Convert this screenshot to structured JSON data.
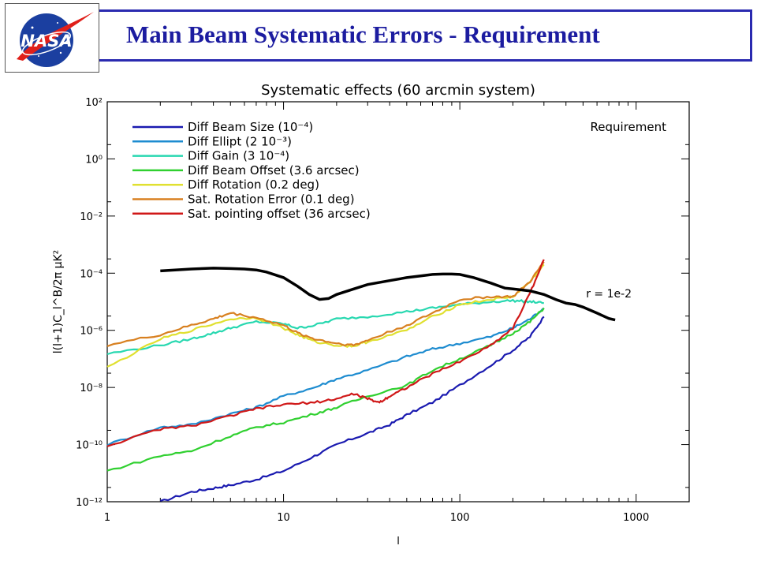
{
  "slide": {
    "title": "Main Beam Systematic Errors - Requirement",
    "logo_text": "NASA",
    "colors": {
      "title": "#1c1ca0",
      "border": "#2a2ab0",
      "logo_blue": "#1b3fa0",
      "logo_red": "#e0201a"
    }
  },
  "chart_data": {
    "type": "line",
    "title": "Systematic effects (60 arcmin system)",
    "xlabel": "l",
    "ylabel": "l(l+1)C_l^B/2π μK²",
    "xscale": "log",
    "yscale": "log",
    "xlim": [
      1,
      2000
    ],
    "ylim": [
      1e-12,
      100
    ],
    "x_ticks": [
      {
        "value": 1,
        "label": "1"
      },
      {
        "value": 10,
        "label": "10"
      },
      {
        "value": 100,
        "label": "100"
      },
      {
        "value": 1000,
        "label": "1000"
      }
    ],
    "y_ticks": [
      {
        "value": 1e-12,
        "label": "10⁻¹²"
      },
      {
        "value": 1e-10,
        "label": "10⁻¹⁰"
      },
      {
        "value": 1e-08,
        "label": "10⁻⁸"
      },
      {
        "value": 1e-06,
        "label": "10⁻⁶"
      },
      {
        "value": 0.0001,
        "label": "10⁻⁴"
      },
      {
        "value": 0.01,
        "label": "10⁻²"
      },
      {
        "value": 1,
        "label": "10⁰"
      },
      {
        "value": 100,
        "label": "10²"
      }
    ],
    "requirement_label": "Requirement",
    "requirement_curve": {
      "name": "r = 1e-2",
      "color": "#000000",
      "points": [
        [
          2,
          0.00012
        ],
        [
          3,
          0.00014
        ],
        [
          4,
          0.00015
        ],
        [
          5,
          0.000145
        ],
        [
          6,
          0.00014
        ],
        [
          7,
          0.00013
        ],
        [
          8,
          0.00011
        ],
        [
          10,
          7e-05
        ],
        [
          12,
          3.5e-05
        ],
        [
          14,
          1.8e-05
        ],
        [
          16,
          1.2e-05
        ],
        [
          18,
          1.3e-05
        ],
        [
          20,
          1.8e-05
        ],
        [
          25,
          2.8e-05
        ],
        [
          30,
          4e-05
        ],
        [
          40,
          5.5e-05
        ],
        [
          50,
          7e-05
        ],
        [
          60,
          8e-05
        ],
        [
          70,
          9e-05
        ],
        [
          80,
          9.3e-05
        ],
        [
          90,
          9.3e-05
        ],
        [
          100,
          9e-05
        ],
        [
          120,
          7e-05
        ],
        [
          150,
          4.5e-05
        ],
        [
          180,
          3e-05
        ],
        [
          200,
          2.8e-05
        ],
        [
          250,
          2.4e-05
        ],
        [
          300,
          1.8e-05
        ],
        [
          350,
          1.2e-05
        ],
        [
          400,
          9e-06
        ],
        [
          450,
          8e-06
        ],
        [
          500,
          6.5e-06
        ],
        [
          600,
          4e-06
        ],
        [
          700,
          2.6e-06
        ],
        [
          760,
          2.3e-06
        ]
      ]
    },
    "series": [
      {
        "name": "Diff Beam Size (10⁻⁴)",
        "color": "#1a1ab0",
        "points": [
          [
            2,
            1e-12
          ],
          [
            3,
            2.2e-12
          ],
          [
            4,
            3e-12
          ],
          [
            5,
            3.8e-12
          ],
          [
            7,
            6e-12
          ],
          [
            10,
            1.2e-11
          ],
          [
            15,
            4e-11
          ],
          [
            20,
            1e-10
          ],
          [
            30,
            2.5e-10
          ],
          [
            40,
            5e-10
          ],
          [
            50,
            1.1e-09
          ],
          [
            70,
            3e-09
          ],
          [
            100,
            1.2e-08
          ],
          [
            150,
            6e-08
          ],
          [
            200,
            2e-07
          ],
          [
            250,
            6e-07
          ],
          [
            300,
            3e-06
          ]
        ]
      },
      {
        "name": "Diff Ellipt (2 10⁻³)",
        "color": "#1e8cd0",
        "points": [
          [
            1,
            1e-10
          ],
          [
            2,
            4e-10
          ],
          [
            3,
            5e-10
          ],
          [
            5,
            1.2e-09
          ],
          [
            7,
            2e-09
          ],
          [
            10,
            5e-09
          ],
          [
            15,
            1e-08
          ],
          [
            20,
            2e-08
          ],
          [
            30,
            4e-08
          ],
          [
            50,
            1.2e-07
          ],
          [
            70,
            2.2e-07
          ],
          [
            100,
            3.5e-07
          ],
          [
            150,
            6e-07
          ],
          [
            200,
            1.2e-06
          ],
          [
            250,
            2.5e-06
          ],
          [
            300,
            6e-06
          ]
        ]
      },
      {
        "name": "Diff Gain (3 10⁻⁴)",
        "color": "#28d8b0",
        "points": [
          [
            1,
            1.5e-07
          ],
          [
            2,
            3e-07
          ],
          [
            3,
            5e-07
          ],
          [
            4,
            8e-07
          ],
          [
            5,
            1.2e-06
          ],
          [
            7,
            2e-06
          ],
          [
            10,
            1.7e-06
          ],
          [
            12,
            1.2e-06
          ],
          [
            15,
            1.5e-06
          ],
          [
            20,
            2.5e-06
          ],
          [
            30,
            3e-06
          ],
          [
            50,
            4.5e-06
          ],
          [
            70,
            6e-06
          ],
          [
            100,
            8e-06
          ],
          [
            150,
            1e-05
          ],
          [
            200,
            1.1e-05
          ],
          [
            250,
            1e-05
          ],
          [
            300,
            9e-06
          ]
        ]
      },
      {
        "name": "Diff Beam Offset (3.6 arcsec)",
        "color": "#30d030",
        "points": [
          [
            1,
            1.2e-11
          ],
          [
            2,
            4e-11
          ],
          [
            3,
            6e-11
          ],
          [
            5,
            2e-10
          ],
          [
            7,
            4e-10
          ],
          [
            10,
            6e-10
          ],
          [
            15,
            1.2e-09
          ],
          [
            20,
            2e-09
          ],
          [
            30,
            5e-09
          ],
          [
            50,
            1.2e-08
          ],
          [
            70,
            4e-08
          ],
          [
            100,
            1e-07
          ],
          [
            150,
            3e-07
          ],
          [
            200,
            8e-07
          ],
          [
            250,
            2e-06
          ],
          [
            300,
            6e-06
          ]
        ]
      },
      {
        "name": "Diff Rotation (0.2 deg)",
        "color": "#e0e030",
        "points": [
          [
            1,
            5e-08
          ],
          [
            2,
            5e-07
          ],
          [
            3,
            1e-06
          ],
          [
            5,
            2.5e-06
          ],
          [
            7,
            2.8e-06
          ],
          [
            10,
            1.2e-06
          ],
          [
            12,
            7e-07
          ],
          [
            15,
            4e-07
          ],
          [
            20,
            3e-07
          ],
          [
            25,
            2.8e-07
          ],
          [
            30,
            4e-07
          ],
          [
            50,
            1e-06
          ],
          [
            70,
            3e-06
          ],
          [
            100,
            8e-06
          ],
          [
            150,
            1.2e-05
          ],
          [
            200,
            1.5e-05
          ],
          [
            250,
            5e-05
          ],
          [
            300,
            0.0002
          ]
        ]
      },
      {
        "name": "Sat. Rotation Error (0.1 deg)",
        "color": "#d88020",
        "points": [
          [
            1,
            3e-07
          ],
          [
            2,
            7e-07
          ],
          [
            3,
            1.5e-06
          ],
          [
            4,
            2.5e-06
          ],
          [
            5,
            4e-06
          ],
          [
            7,
            2.8e-06
          ],
          [
            10,
            1.5e-06
          ],
          [
            12,
            8e-07
          ],
          [
            15,
            5e-07
          ],
          [
            20,
            3.5e-07
          ],
          [
            25,
            3e-07
          ],
          [
            30,
            4.5e-07
          ],
          [
            50,
            1.5e-06
          ],
          [
            70,
            4e-06
          ],
          [
            100,
            1.2e-05
          ],
          [
            150,
            1.5e-05
          ],
          [
            200,
            1.5e-05
          ],
          [
            250,
            5e-05
          ],
          [
            300,
            0.00025
          ]
        ]
      },
      {
        "name": "Sat. pointing offset (36 arcsec)",
        "color": "#d01818",
        "points": [
          [
            1,
            9e-11
          ],
          [
            2,
            3.5e-10
          ],
          [
            3,
            4.5e-10
          ],
          [
            5,
            1e-09
          ],
          [
            7,
            1.8e-09
          ],
          [
            10,
            2.5e-09
          ],
          [
            15,
            3e-09
          ],
          [
            20,
            4e-09
          ],
          [
            25,
            6e-09
          ],
          [
            30,
            4e-09
          ],
          [
            35,
            3e-09
          ],
          [
            40,
            5e-09
          ],
          [
            50,
            1e-08
          ],
          [
            70,
            3e-08
          ],
          [
            100,
            8e-08
          ],
          [
            150,
            3e-07
          ],
          [
            200,
            1.2e-06
          ],
          [
            250,
            2e-05
          ],
          [
            300,
            0.0003
          ]
        ]
      }
    ]
  }
}
